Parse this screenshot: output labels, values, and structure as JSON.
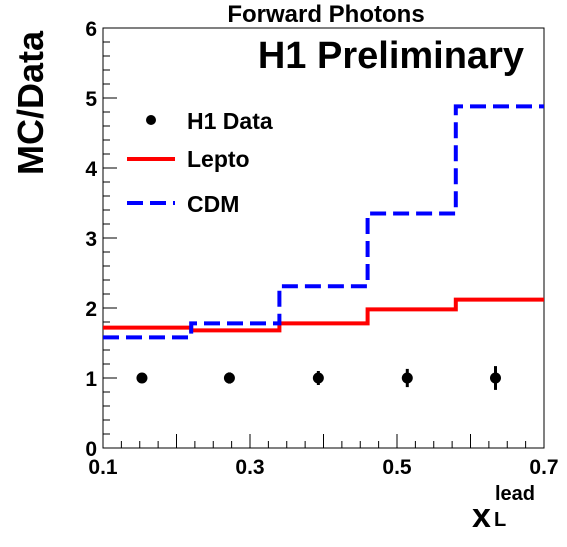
{
  "chart_data": {
    "type": "line",
    "title": "Forward Photons",
    "annotation": "H1 Preliminary",
    "ylabel": "MC/Data",
    "xlabel_main": "x",
    "xlabel_sup": "lead",
    "xlabel_sub": "L",
    "xlim": [
      0.1,
      0.7
    ],
    "ylim": [
      0,
      6
    ],
    "x_tick_labels": [
      "0.1",
      "0.3",
      "0.5",
      "0.7"
    ],
    "x_tick_values": [
      0.1,
      0.3,
      0.5,
      0.7
    ],
    "y_tick_labels": [
      "0",
      "1",
      "2",
      "3",
      "4",
      "5",
      "6"
    ],
    "y_tick_values": [
      0,
      1,
      2,
      3,
      4,
      5,
      6
    ],
    "legend_position": "top-left",
    "bin_edges": [
      0.1,
      0.22,
      0.34,
      0.46,
      0.58,
      0.7
    ],
    "series": [
      {
        "name": "H1 Data",
        "style": "points",
        "color": "#000000",
        "x": [
          0.153,
          0.272,
          0.393,
          0.514,
          0.634
        ],
        "values": [
          1.0,
          1.0,
          1.0,
          1.0,
          1.0
        ],
        "errors": [
          0.05,
          0.08,
          0.1,
          0.13,
          0.17
        ]
      },
      {
        "name": "Lepto",
        "style": "solid-step",
        "color": "#ff0000",
        "values": [
          1.72,
          1.68,
          1.78,
          1.98,
          2.12
        ]
      },
      {
        "name": "CDM",
        "style": "dashed-step",
        "color": "#0000ff",
        "values": [
          1.58,
          1.78,
          2.31,
          3.35,
          4.88
        ]
      }
    ]
  }
}
